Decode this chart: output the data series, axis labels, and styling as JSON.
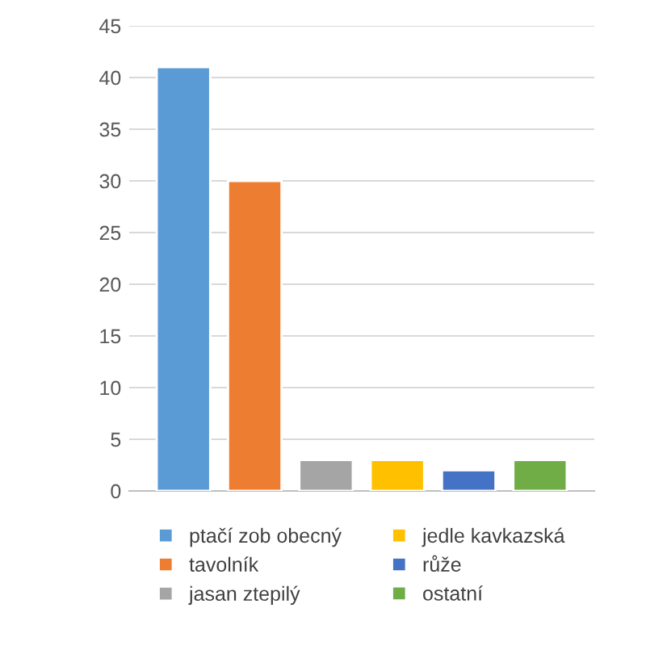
{
  "chart_data": {
    "type": "bar",
    "categories": [
      null
    ],
    "series": [
      {
        "name": "ptačí zob obecný",
        "color": "#5b9bd5",
        "values": [
          41
        ]
      },
      {
        "name": "tavolník",
        "color": "#ed7d31",
        "values": [
          30
        ]
      },
      {
        "name": "jasan ztepilý",
        "color": "#a5a5a5",
        "values": [
          3
        ]
      },
      {
        "name": "jedle kavkazská",
        "color": "#ffc000",
        "values": [
          3
        ]
      },
      {
        "name": "růže",
        "color": "#4472c4",
        "values": [
          2
        ]
      },
      {
        "name": "ostatní",
        "color": "#70ad47",
        "values": [
          3
        ]
      }
    ],
    "ylim": [
      0,
      45
    ],
    "yticks": [
      0,
      5,
      10,
      15,
      20,
      25,
      30,
      35,
      40,
      45
    ],
    "grid": "y",
    "legend": "bottom"
  }
}
